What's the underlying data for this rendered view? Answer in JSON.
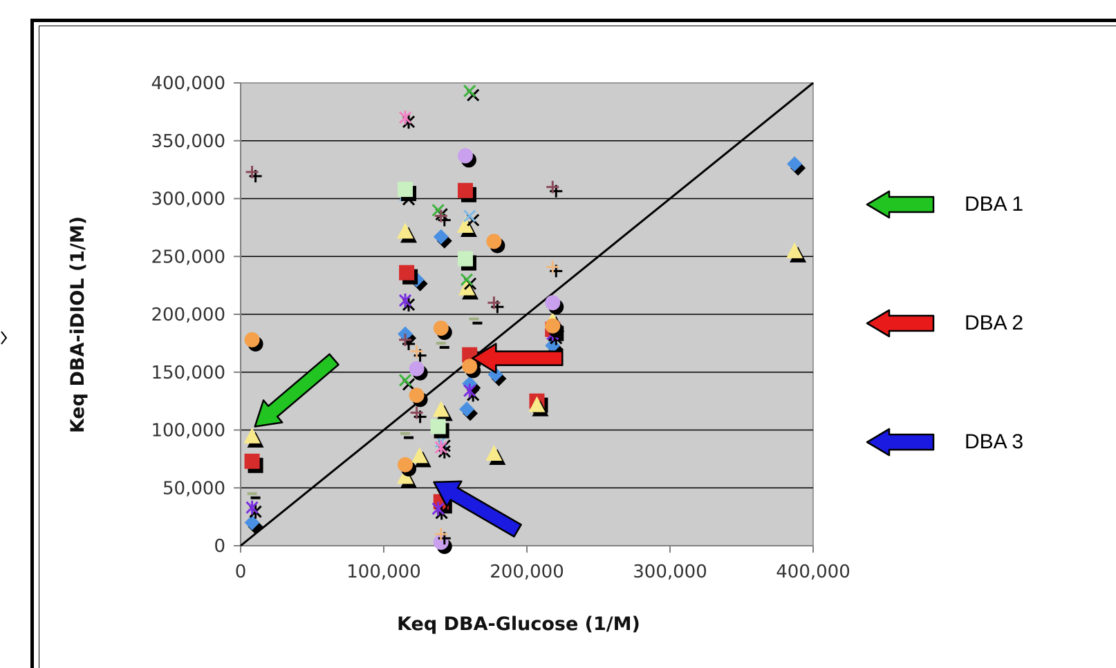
{
  "chart_data": {
    "type": "scatter",
    "title": "",
    "xlabel": "Keq DBA-Glucose (1/M)",
    "ylabel": "Keq DBA-iDIOL (1/M)",
    "xlim": [
      0,
      400000
    ],
    "ylim": [
      0,
      400000
    ],
    "xticks": [
      "0",
      "100,000",
      "200,000",
      "300,000",
      "400,000"
    ],
    "yticks": [
      "0",
      "50,000",
      "100,000",
      "150,000",
      "200,000",
      "250,000",
      "300,000",
      "350,000",
      "400,000"
    ],
    "grid": "horizontal",
    "plot_background": "#cccccc",
    "reference_line": {
      "from": [
        0,
        0
      ],
      "to": [
        400000,
        400000
      ]
    },
    "series": [
      {
        "marker": "diamond",
        "color": "#4a90e2",
        "points": [
          [
            8000,
            20000
          ],
          [
            115000,
            183000
          ],
          [
            123000,
            230000
          ],
          [
            140000,
            267000
          ],
          [
            158000,
            118000
          ],
          [
            160000,
            140000
          ],
          [
            178000,
            148000
          ],
          [
            218000,
            173000
          ],
          [
            387000,
            330000
          ]
        ]
      },
      {
        "marker": "square",
        "color": "#d62c2c",
        "points": [
          [
            8000,
            73000
          ],
          [
            116000,
            236000
          ],
          [
            140000,
            38000
          ],
          [
            157000,
            307000
          ],
          [
            160000,
            165000
          ],
          [
            207000,
            125000
          ],
          [
            218000,
            187000
          ]
        ]
      },
      {
        "marker": "triangle",
        "color": "#f8ea8a",
        "points": [
          [
            8000,
            95000
          ],
          [
            115000,
            60000
          ],
          [
            115000,
            272000
          ],
          [
            125000,
            78000
          ],
          [
            140000,
            118000
          ],
          [
            157000,
            277000
          ],
          [
            158000,
            223000
          ],
          [
            177000,
            80000
          ],
          [
            207000,
            122000
          ],
          [
            218000,
            195000
          ],
          [
            387000,
            255000
          ]
        ]
      },
      {
        "marker": "x",
        "color": "#3cb43c",
        "points": [
          [
            115000,
            143000
          ],
          [
            138000,
            290000
          ],
          [
            158000,
            230000
          ],
          [
            160000,
            393000
          ]
        ]
      },
      {
        "marker": "x",
        "color": "#7db9e8",
        "points": [
          [
            115000,
            303000
          ],
          [
            140000,
            90000
          ],
          [
            160000,
            285000
          ]
        ]
      },
      {
        "marker": "asterisk",
        "color": "#7a2fe0",
        "points": [
          [
            8000,
            33000
          ],
          [
            115000,
            212000
          ],
          [
            138000,
            32000
          ],
          [
            160000,
            134000
          ],
          [
            218000,
            183000
          ]
        ]
      },
      {
        "marker": "asterisk",
        "color": "#f27fc4",
        "points": [
          [
            115000,
            370000
          ],
          [
            140000,
            85000
          ]
        ]
      },
      {
        "marker": "circle",
        "color": "#f5a04a",
        "points": [
          [
            8000,
            178000
          ],
          [
            115000,
            70000
          ],
          [
            123000,
            130000
          ],
          [
            140000,
            188000
          ],
          [
            160000,
            155000
          ],
          [
            177000,
            263000
          ],
          [
            218000,
            190000
          ]
        ]
      },
      {
        "marker": "circle",
        "color": "#c9a0ee",
        "points": [
          [
            123000,
            153000
          ],
          [
            140000,
            3000
          ],
          [
            157000,
            337000
          ],
          [
            218000,
            210000
          ]
        ]
      },
      {
        "marker": "square",
        "color": "#c8f0c0",
        "points": [
          [
            115000,
            308000
          ],
          [
            138000,
            103000
          ],
          [
            157000,
            248000
          ]
        ]
      },
      {
        "marker": "plus",
        "color": "#8a4a5a",
        "points": [
          [
            8000,
            323000
          ],
          [
            115000,
            178000
          ],
          [
            123000,
            115000
          ],
          [
            140000,
            285000
          ],
          [
            177000,
            210000
          ],
          [
            218000,
            310000
          ]
        ]
      },
      {
        "marker": "plus",
        "color": "#f0b880",
        "points": [
          [
            123000,
            168000
          ],
          [
            140000,
            10000
          ],
          [
            218000,
            241000
          ]
        ]
      },
      {
        "marker": "dash",
        "color": "#a0b080",
        "points": [
          [
            8000,
            45000
          ],
          [
            115000,
            97000
          ],
          [
            140000,
            175000
          ],
          [
            163000,
            196000
          ]
        ]
      }
    ],
    "legend": [
      {
        "label": "DBA 1",
        "color": "#22c422"
      },
      {
        "label": "DBA 2",
        "color": "#e81a1a"
      },
      {
        "label": "DBA 3",
        "color": "#1a1ae0"
      }
    ],
    "callout_arrows": [
      {
        "color": "#22c422",
        "point_to": [
          10000,
          103000
        ]
      },
      {
        "color": "#e81a1a",
        "point_to": [
          162000,
          162000
        ]
      },
      {
        "color": "#1a1ae0",
        "point_to": [
          135000,
          55000
        ]
      }
    ]
  }
}
